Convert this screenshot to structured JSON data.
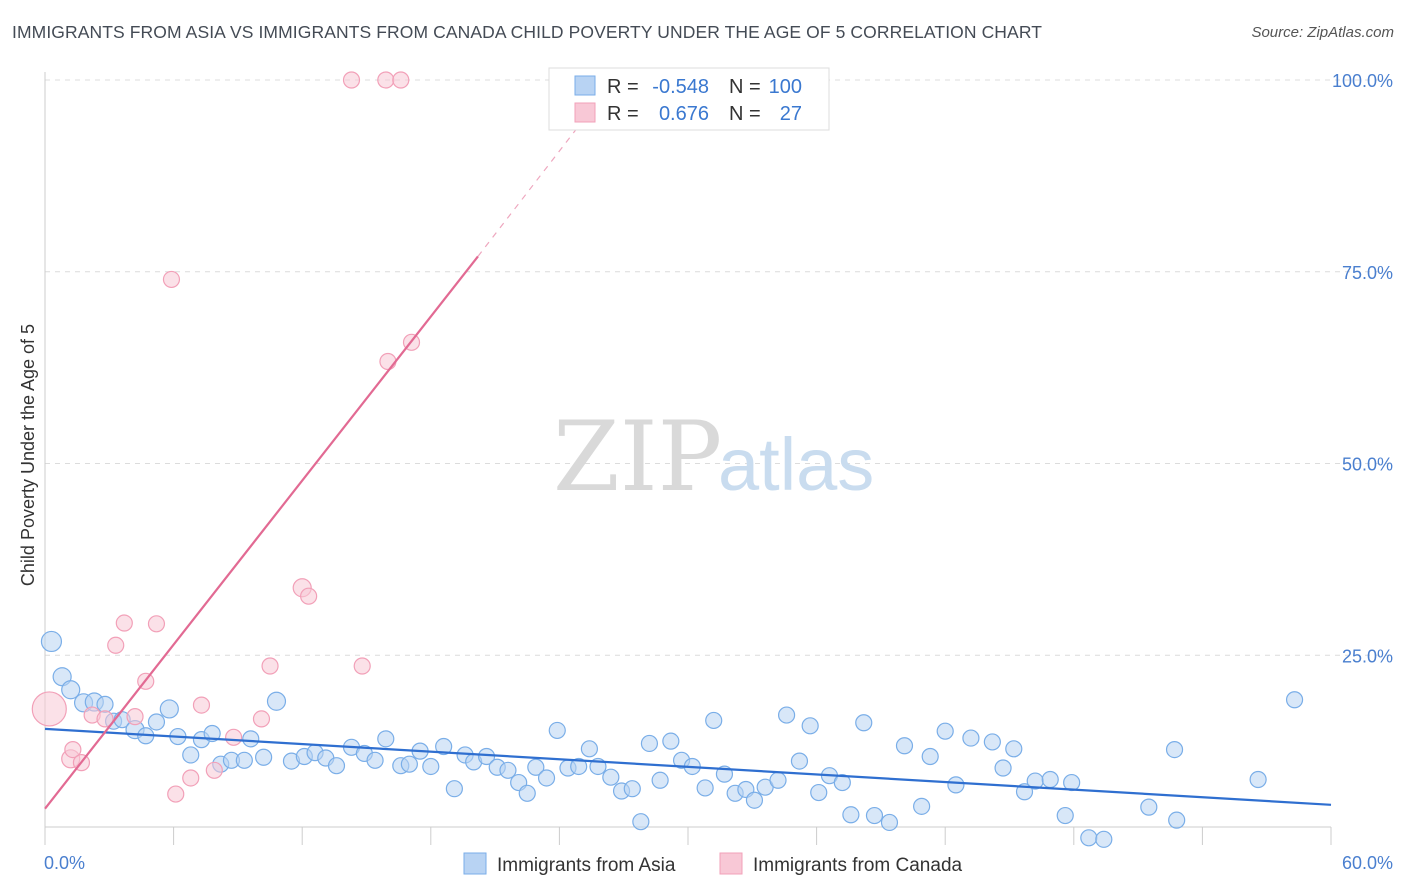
{
  "title": "IMMIGRANTS FROM ASIA VS IMMIGRANTS FROM CANADA CHILD POVERTY UNDER THE AGE OF 5 CORRELATION CHART",
  "source": "Source: ZipAtlas.com",
  "watermark": {
    "zip": "ZIP",
    "atlas": "atlas"
  },
  "stats_legend": {
    "rows": [
      {
        "r_label": "R =",
        "r_value": "-0.548",
        "n_label": "N =",
        "n_value": "100"
      },
      {
        "r_label": "R =",
        "r_value": "0.676",
        "n_label": "N =",
        "n_value": "27"
      }
    ]
  },
  "chart_data": {
    "type": "scatter",
    "ylabel": "Child Poverty Under the Age of 5",
    "xlim": [
      0,
      60
    ],
    "ylim": [
      0,
      103
    ],
    "x_tick_labels": [
      {
        "value": 0,
        "label": "0.0%"
      },
      {
        "value": 60,
        "label": "60.0%"
      }
    ],
    "y_tick_labels": [
      {
        "value": 25,
        "label": "25.0%"
      },
      {
        "value": 50,
        "label": "50.0%"
      },
      {
        "value": 75,
        "label": "75.0%"
      },
      {
        "value": 100,
        "label": "100.0%"
      }
    ],
    "x_minor_ticks": [
      0,
      6,
      12,
      18,
      24,
      30,
      36,
      42,
      48,
      54,
      60
    ],
    "grid": "horizontal dashed",
    "series": [
      {
        "name": "Immigrants from Asia",
        "color": "#7aaee8",
        "fill": "#b8d3f3",
        "trend_color": "#2f6fd0",
        "trend": {
          "x": [
            0,
            60
          ],
          "y": [
            15.4,
            5.5
          ]
        },
        "points": [
          [
            0.3,
            26.8,
            10
          ],
          [
            0.8,
            22.2,
            9
          ],
          [
            1.2,
            20.5,
            9
          ],
          [
            1.8,
            18.8,
            9
          ],
          [
            2.3,
            18.9,
            9
          ],
          [
            2.8,
            18.6,
            8
          ],
          [
            3.2,
            16.4,
            8
          ],
          [
            3.6,
            16.6,
            8
          ],
          [
            4.2,
            15.3,
            9
          ],
          [
            4.7,
            14.5,
            8
          ],
          [
            5.2,
            16.3,
            8
          ],
          [
            5.8,
            18.0,
            9
          ],
          [
            6.2,
            14.4,
            8
          ],
          [
            6.8,
            12.0,
            8
          ],
          [
            7.3,
            14.0,
            8
          ],
          [
            7.8,
            14.8,
            8
          ],
          [
            8.2,
            10.8,
            8
          ],
          [
            8.7,
            11.3,
            8
          ],
          [
            9.3,
            11.3,
            8
          ],
          [
            9.6,
            14.1,
            8
          ],
          [
            10.2,
            11.7,
            8
          ],
          [
            10.8,
            19.0,
            9
          ],
          [
            11.5,
            11.2,
            8
          ],
          [
            12.1,
            11.8,
            8
          ],
          [
            12.6,
            12.3,
            8
          ],
          [
            13.1,
            11.6,
            8
          ],
          [
            13.6,
            10.6,
            8
          ],
          [
            14.3,
            13.0,
            8
          ],
          [
            14.9,
            12.2,
            8
          ],
          [
            15.4,
            11.3,
            8
          ],
          [
            15.9,
            14.1,
            8
          ],
          [
            16.6,
            10.6,
            8
          ],
          [
            17.0,
            10.8,
            8
          ],
          [
            17.5,
            12.5,
            8
          ],
          [
            18.0,
            10.5,
            8
          ],
          [
            18.6,
            13.1,
            8
          ],
          [
            19.1,
            7.6,
            8
          ],
          [
            19.6,
            12.0,
            8
          ],
          [
            20.0,
            11.1,
            8
          ],
          [
            20.6,
            11.8,
            8
          ],
          [
            21.1,
            10.4,
            8
          ],
          [
            21.6,
            10.0,
            8
          ],
          [
            22.1,
            8.4,
            8
          ],
          [
            22.5,
            7.0,
            8
          ],
          [
            22.9,
            10.4,
            8
          ],
          [
            23.4,
            9.0,
            8
          ],
          [
            23.9,
            15.2,
            8
          ],
          [
            24.4,
            10.3,
            8
          ],
          [
            24.9,
            10.5,
            8
          ],
          [
            25.4,
            12.8,
            8
          ],
          [
            25.8,
            10.5,
            8
          ],
          [
            26.4,
            9.1,
            8
          ],
          [
            26.9,
            7.3,
            8
          ],
          [
            27.4,
            7.6,
            8
          ],
          [
            27.8,
            3.3,
            8
          ],
          [
            28.2,
            13.5,
            8
          ],
          [
            28.7,
            8.7,
            8
          ],
          [
            29.2,
            13.8,
            8
          ],
          [
            29.7,
            11.3,
            8
          ],
          [
            30.2,
            10.5,
            8
          ],
          [
            30.8,
            7.7,
            8
          ],
          [
            31.2,
            16.5,
            8
          ],
          [
            31.7,
            9.5,
            8
          ],
          [
            32.2,
            7.0,
            8
          ],
          [
            32.7,
            7.5,
            8
          ],
          [
            33.1,
            6.1,
            8
          ],
          [
            33.6,
            7.8,
            8
          ],
          [
            34.2,
            8.7,
            8
          ],
          [
            34.6,
            17.2,
            8
          ],
          [
            35.2,
            11.2,
            8
          ],
          [
            35.7,
            15.8,
            8
          ],
          [
            36.1,
            7.1,
            8
          ],
          [
            36.6,
            9.3,
            8
          ],
          [
            37.2,
            8.4,
            8
          ],
          [
            37.6,
            4.2,
            8
          ],
          [
            38.2,
            16.2,
            8
          ],
          [
            38.7,
            4.1,
            8
          ],
          [
            39.4,
            3.2,
            8
          ],
          [
            40.1,
            13.2,
            8
          ],
          [
            40.9,
            5.3,
            8
          ],
          [
            41.3,
            11.8,
            8
          ],
          [
            42.0,
            15.1,
            8
          ],
          [
            42.5,
            8.1,
            8
          ],
          [
            43.2,
            14.2,
            8
          ],
          [
            44.2,
            13.7,
            8
          ],
          [
            44.7,
            10.3,
            8
          ],
          [
            45.2,
            12.8,
            8
          ],
          [
            45.7,
            7.2,
            8
          ],
          [
            46.2,
            8.6,
            8
          ],
          [
            46.9,
            8.8,
            8
          ],
          [
            47.6,
            4.1,
            8
          ],
          [
            47.9,
            8.4,
            8
          ],
          [
            48.7,
            1.2,
            8
          ],
          [
            49.4,
            1.0,
            8
          ],
          [
            51.5,
            5.2,
            8
          ],
          [
            52.7,
            12.7,
            8
          ],
          [
            52.8,
            3.5,
            8
          ],
          [
            56.6,
            8.8,
            8
          ],
          [
            58.3,
            19.2,
            8
          ]
        ]
      },
      {
        "name": "Immigrants from Canada",
        "color": "#f2a0b8",
        "fill": "#f8c8d6",
        "trend_color": "#e26a93",
        "trend": {
          "x": [
            0,
            20.2
          ],
          "y": [
            5.0,
            77.0
          ]
        },
        "trend_ext": {
          "x": [
            20.2,
            24.9
          ],
          "y": [
            77.0,
            94.0
          ]
        },
        "points": [
          [
            0.2,
            18.0,
            17
          ],
          [
            1.2,
            11.5,
            9
          ],
          [
            1.3,
            12.7,
            8
          ],
          [
            1.7,
            11.0,
            8
          ],
          [
            2.2,
            17.2,
            8
          ],
          [
            2.8,
            16.7,
            8
          ],
          [
            3.3,
            26.3,
            8
          ],
          [
            3.7,
            29.2,
            8
          ],
          [
            4.2,
            17.0,
            8
          ],
          [
            4.7,
            21.6,
            8
          ],
          [
            5.2,
            29.1,
            8
          ],
          [
            6.1,
            6.9,
            8
          ],
          [
            5.9,
            74.0,
            8
          ],
          [
            6.8,
            9.0,
            8
          ],
          [
            7.3,
            18.5,
            8
          ],
          [
            7.9,
            10.0,
            8
          ],
          [
            8.8,
            14.3,
            8
          ],
          [
            10.1,
            16.7,
            8
          ],
          [
            10.5,
            23.6,
            8
          ],
          [
            12.0,
            33.8,
            9
          ],
          [
            12.3,
            32.7,
            8
          ],
          [
            14.8,
            23.6,
            8
          ],
          [
            14.3,
            100.0,
            8
          ],
          [
            15.9,
            100.0,
            8
          ],
          [
            16.0,
            63.3,
            8
          ],
          [
            16.6,
            100.0,
            8
          ],
          [
            17.1,
            65.8,
            8
          ]
        ]
      }
    ]
  }
}
